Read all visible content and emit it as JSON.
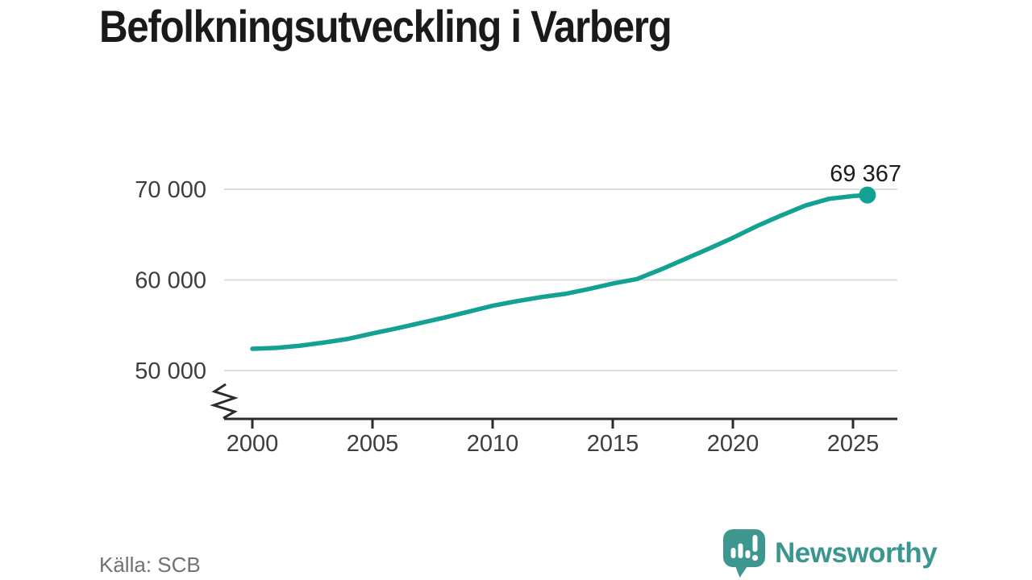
{
  "header": {
    "title": "Befolkningsutveckling i Varberg"
  },
  "footer": {
    "source_label": "Källa: SCB",
    "brand_name": "Newsworthy"
  },
  "colors": {
    "line": "#12a192",
    "logo": "#3e978e",
    "grid": "#dcdcdc",
    "axis": "#2b2b2b",
    "tick_text": "#3d3d3d",
    "title_text": "#1a1a1a",
    "annotation_text": "#1a1a1a",
    "source_text": "#717171"
  },
  "chart_data": {
    "type": "line",
    "title": "Befolkningsutveckling i Varberg",
    "xlabel": "",
    "ylabel": "",
    "legend": "none",
    "grid": "horizontal",
    "y_axis_break": true,
    "ylim_visible": [
      50000,
      70000
    ],
    "x_ticks": [
      {
        "value": 2000,
        "label": "2000"
      },
      {
        "value": 2005,
        "label": "2005"
      },
      {
        "value": 2010,
        "label": "2010"
      },
      {
        "value": 2015,
        "label": "2015"
      },
      {
        "value": 2020,
        "label": "2020"
      },
      {
        "value": 2025,
        "label": "2025"
      }
    ],
    "y_ticks": [
      {
        "value": 50000,
        "label": "50 000"
      },
      {
        "value": 60000,
        "label": "60 000"
      },
      {
        "value": 70000,
        "label": "70 000"
      }
    ],
    "x": [
      2000,
      2001,
      2002,
      2003,
      2004,
      2005,
      2006,
      2007,
      2008,
      2009,
      2010,
      2011,
      2012,
      2013,
      2014,
      2015,
      2016,
      2017,
      2018,
      2019,
      2020,
      2021,
      2022,
      2023,
      2024,
      2025,
      2025.6
    ],
    "y": [
      52400,
      52500,
      52750,
      53100,
      53500,
      54100,
      54650,
      55250,
      55850,
      56500,
      57150,
      57650,
      58100,
      58450,
      59000,
      59600,
      60100,
      61150,
      62300,
      63450,
      64650,
      65950,
      67100,
      68200,
      68950,
      69250,
      69367
    ],
    "last_point_label": "69 367",
    "source": "Källa: SCB"
  }
}
